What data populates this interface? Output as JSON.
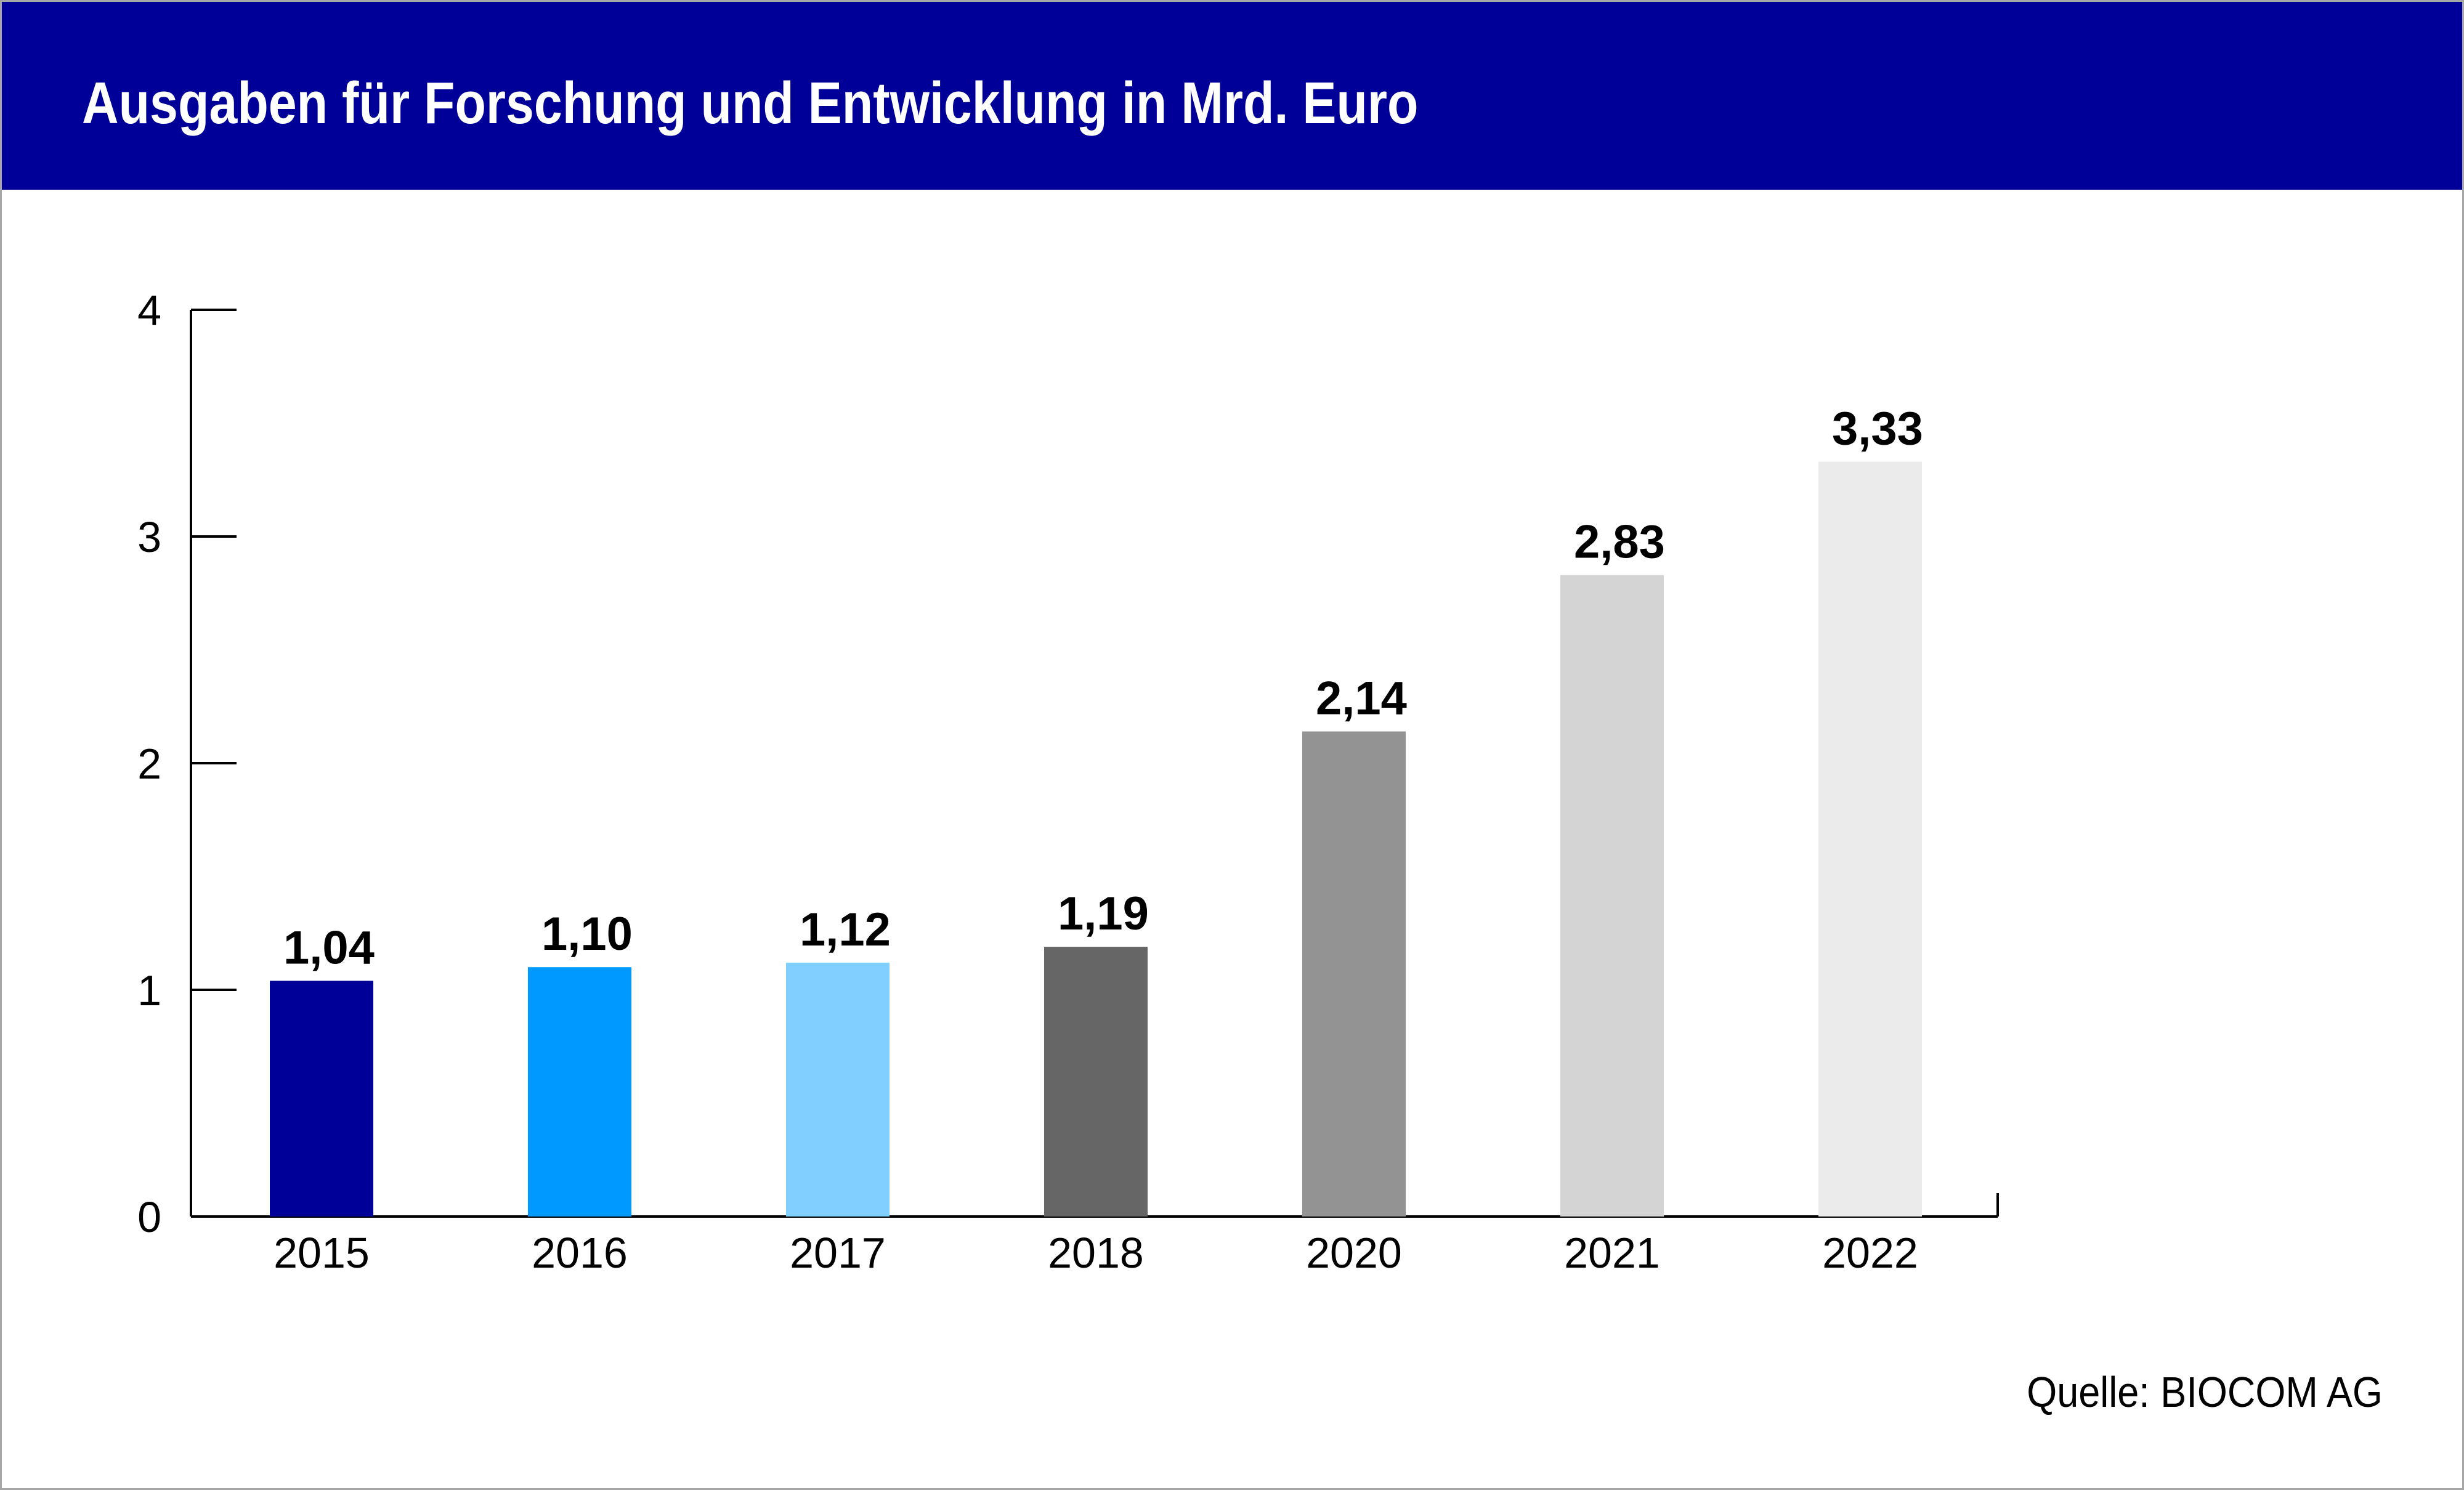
{
  "header": {
    "title": "Ausgaben für Forschung und Entwicklung in Mrd. Euro"
  },
  "footer": {
    "source": "Quelle: BIOCOM AG"
  },
  "chart_data": {
    "type": "bar",
    "title": "Ausgaben für Forschung und Entwicklung in Mrd. Euro",
    "xlabel": "",
    "ylabel": "",
    "ylim": [
      0,
      4
    ],
    "yticks": [
      "0",
      "1",
      "2",
      "3",
      "4"
    ],
    "grid": false,
    "categories": [
      "2015",
      "2016",
      "2017",
      "2018",
      "2020",
      "2021",
      "2022"
    ],
    "values": [
      1.04,
      1.1,
      1.12,
      1.19,
      2.14,
      2.83,
      3.33
    ],
    "value_labels": [
      "1,04",
      "1,10",
      "1,12",
      "1,19",
      "2,14",
      "2,83",
      "3,33"
    ],
    "colors": [
      "#000099",
      "#0099ff",
      "#80cfff",
      "#666666",
      "#939393",
      "#d4d4d4",
      "#ebebec"
    ]
  }
}
